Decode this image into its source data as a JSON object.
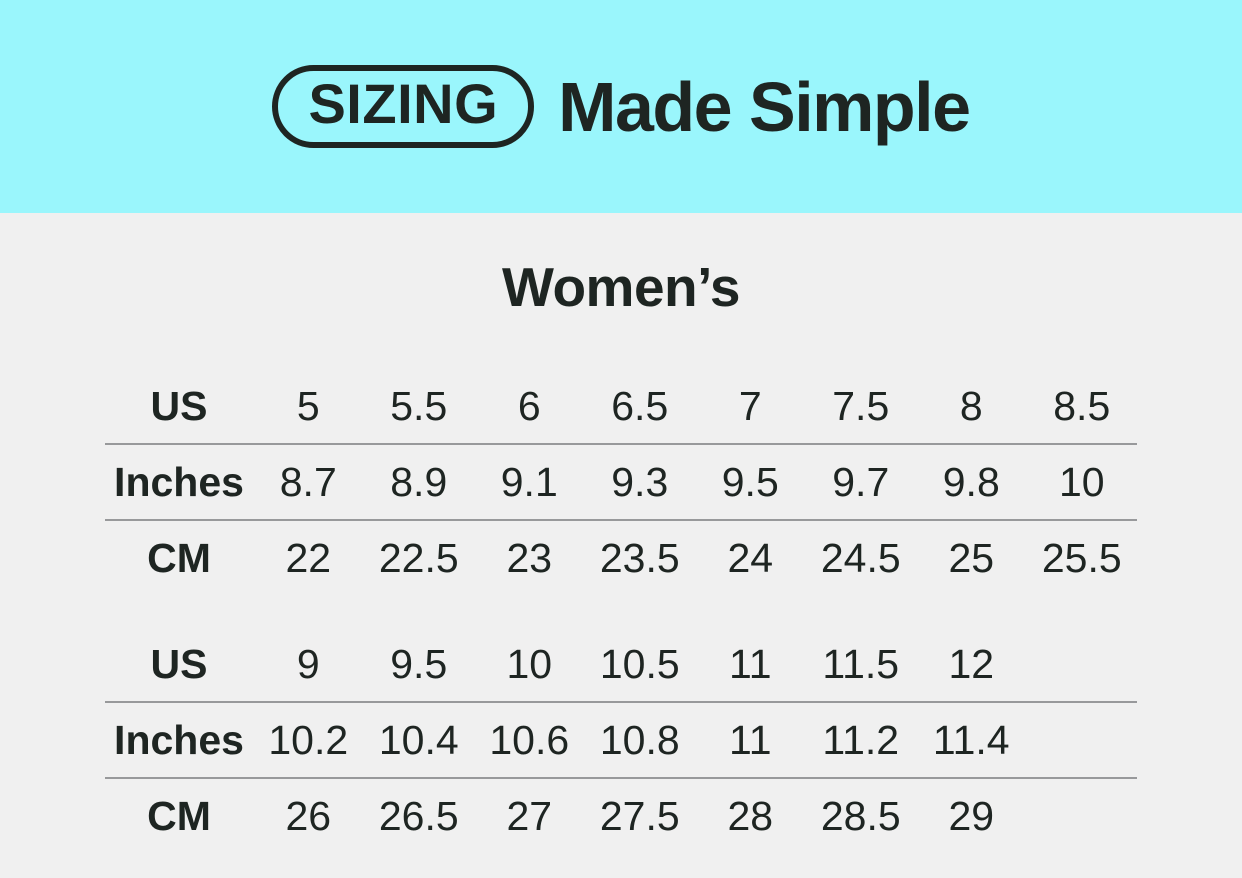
{
  "colors": {
    "banner_background": "#9AF6FC",
    "page_background": "#F0F0F0",
    "text": "#1E2522",
    "divider": "#98999B"
  },
  "header": {
    "badge_label": "SIZING",
    "title": "Made Simple"
  },
  "section": {
    "title": "Women’s"
  },
  "chart_data": {
    "type": "table",
    "title": "SIZING Made Simple",
    "section_title": "Women’s",
    "row_headers": [
      "US",
      "Inches",
      "CM"
    ],
    "tables": [
      {
        "rows": [
          {
            "label": "US",
            "values": [
              "5",
              "5.5",
              "6",
              "6.5",
              "7",
              "7.5",
              "8",
              "8.5"
            ]
          },
          {
            "label": "Inches",
            "values": [
              "8.7",
              "8.9",
              "9.1",
              "9.3",
              "9.5",
              "9.7",
              "9.8",
              "10"
            ]
          },
          {
            "label": "CM",
            "values": [
              "22",
              "22.5",
              "23",
              "23.5",
              "24",
              "24.5",
              "25",
              "25.5"
            ]
          }
        ]
      },
      {
        "rows": [
          {
            "label": "US",
            "values": [
              "9",
              "9.5",
              "10",
              "10.5",
              "11",
              "11.5",
              "12",
              ""
            ]
          },
          {
            "label": "Inches",
            "values": [
              "10.2",
              "10.4",
              "10.6",
              "10.8",
              "11",
              "11.2",
              "11.4",
              ""
            ]
          },
          {
            "label": "CM",
            "values": [
              "26",
              "26.5",
              "27",
              "27.5",
              "28",
              "28.5",
              "29",
              ""
            ]
          }
        ]
      }
    ],
    "layout": {
      "columns_per_table": 8,
      "grid": "off",
      "row_dividers": "on"
    }
  }
}
